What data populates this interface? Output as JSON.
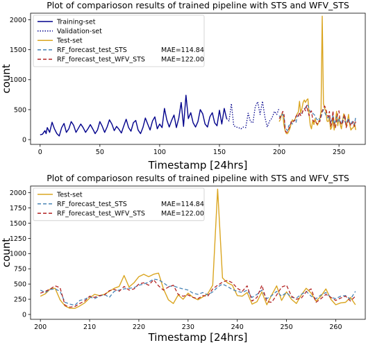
{
  "chart_data": [
    {
      "type": "line",
      "title": "Plot of comparioson results of trained pipeline with STS and WFV_STS",
      "xlabel": "Timestamp [24hrs]",
      "ylabel": "count",
      "xlim": [
        -8,
        272
      ],
      "ylim": [
        -80,
        2110
      ],
      "xticks": [
        0,
        50,
        100,
        150,
        200,
        250
      ],
      "yticks": [
        0,
        500,
        1000,
        1500,
        2000
      ],
      "legend_position": "top-left",
      "series": [
        {
          "name": "Training-set",
          "color": "#00008b",
          "style": "solid",
          "x": [
            0,
            2,
            4,
            5,
            6,
            8,
            10,
            12,
            14,
            16,
            18,
            20,
            22,
            24,
            26,
            28,
            30,
            32,
            34,
            36,
            38,
            40,
            42,
            44,
            46,
            48,
            50,
            52,
            54,
            56,
            58,
            60,
            62,
            64,
            66,
            68,
            70,
            72,
            74,
            76,
            78,
            80,
            82,
            84,
            86,
            88,
            90,
            92,
            94,
            96,
            98,
            100,
            102,
            104,
            106,
            108,
            110,
            112,
            114,
            116,
            118,
            120,
            122,
            124,
            126,
            128,
            130,
            132,
            134,
            136,
            138,
            140,
            142,
            144,
            146,
            148,
            150,
            152,
            154,
            156
          ],
          "y": [
            80,
            90,
            150,
            100,
            200,
            120,
            290,
            180,
            100,
            60,
            200,
            270,
            120,
            180,
            300,
            240,
            120,
            190,
            260,
            200,
            120,
            180,
            250,
            180,
            100,
            160,
            300,
            220,
            120,
            210,
            330,
            260,
            150,
            220,
            170,
            110,
            230,
            340,
            200,
            140,
            280,
            320,
            160,
            100,
            200,
            360,
            260,
            160,
            310,
            380,
            180,
            260,
            200,
            520,
            330,
            210,
            320,
            410,
            200,
            360,
            620,
            220,
            740,
            350,
            450,
            280,
            210,
            300,
            500,
            430,
            260,
            210,
            380,
            450,
            280,
            230,
            490,
            260,
            520,
            350
          ]
        },
        {
          "name": "Validation-set",
          "color": "#00008b",
          "style": "dotted",
          "x": [
            156,
            158,
            160,
            162,
            164,
            166,
            168,
            170,
            172,
            174,
            176,
            178,
            180,
            182,
            184,
            186,
            188,
            190,
            192,
            194,
            196,
            198,
            200
          ],
          "y": [
            350,
            310,
            600,
            230,
            210,
            200,
            180,
            210,
            200,
            440,
            300,
            280,
            550,
            630,
            420,
            640,
            380,
            210,
            310,
            360,
            470,
            420,
            530
          ]
        },
        {
          "name": "Test-set",
          "color": "#daa520",
          "style": "solid",
          "x": [
            200,
            201,
            202,
            203,
            204,
            205,
            206,
            207,
            208,
            209,
            210,
            211,
            212,
            213,
            214,
            215,
            216,
            217,
            218,
            219,
            220,
            221,
            222,
            223,
            224,
            225,
            226,
            227,
            228,
            229,
            230,
            231,
            232,
            233,
            234,
            235,
            236,
            237,
            238,
            239,
            240,
            241,
            242,
            243,
            244,
            245,
            246,
            247,
            248,
            249,
            250,
            251,
            252,
            253,
            254,
            255,
            256,
            257,
            258,
            259,
            260,
            261,
            262,
            263,
            264
          ],
          "y": [
            300,
            340,
            420,
            430,
            240,
            140,
            100,
            100,
            140,
            190,
            270,
            330,
            310,
            330,
            380,
            430,
            460,
            640,
            450,
            520,
            620,
            660,
            620,
            660,
            680,
            420,
            240,
            180,
            320,
            250,
            350,
            280,
            240,
            290,
            340,
            480,
            2060,
            600,
            520,
            480,
            310,
            300,
            360,
            170,
            210,
            370,
            160,
            320,
            470,
            230,
            370,
            250,
            180,
            320,
            430,
            350,
            220,
            300,
            420,
            250,
            160,
            190,
            200,
            280,
            160
          ]
        },
        {
          "name": "RF_forecast_test_STS",
          "color": "#4682b4",
          "style": "dashed",
          "mae_label": "MAE=114.84",
          "x": [
            200,
            201,
            202,
            203,
            204,
            205,
            206,
            207,
            208,
            209,
            210,
            211,
            212,
            213,
            214,
            215,
            216,
            217,
            218,
            219,
            220,
            221,
            222,
            223,
            224,
            225,
            226,
            227,
            228,
            229,
            230,
            231,
            232,
            233,
            234,
            235,
            236,
            237,
            238,
            239,
            240,
            241,
            242,
            243,
            244,
            245,
            246,
            247,
            248,
            249,
            250,
            251,
            252,
            253,
            254,
            255,
            256,
            257,
            258,
            259,
            260,
            261,
            262,
            263,
            264
          ],
          "y": [
            400,
            360,
            410,
            420,
            380,
            200,
            170,
            150,
            230,
            250,
            290,
            260,
            300,
            330,
            280,
            380,
            400,
            420,
            430,
            440,
            480,
            500,
            530,
            580,
            570,
            520,
            460,
            470,
            440,
            420,
            400,
            350,
            330,
            360,
            320,
            370,
            450,
            500,
            460,
            410,
            380,
            360,
            400,
            280,
            330,
            400,
            260,
            310,
            380,
            300,
            360,
            280,
            270,
            330,
            380,
            300,
            260,
            320,
            360,
            280,
            260,
            300,
            310,
            250,
            380
          ]
        },
        {
          "name": "RF_forecast_test_WFV_STS",
          "color": "#b22222",
          "style": "dashed",
          "mae_label": "MAE=122.00",
          "x": [
            200,
            201,
            202,
            203,
            204,
            205,
            206,
            207,
            208,
            209,
            210,
            211,
            212,
            213,
            214,
            215,
            216,
            217,
            218,
            219,
            220,
            221,
            222,
            223,
            224,
            225,
            226,
            227,
            228,
            229,
            230,
            231,
            232,
            233,
            234,
            235,
            236,
            237,
            238,
            239,
            240,
            241,
            242,
            243,
            244,
            245,
            246,
            247,
            248,
            249,
            250,
            251,
            252,
            253,
            254,
            255,
            256,
            257,
            258,
            259,
            260,
            261,
            262,
            263,
            264
          ],
          "y": [
            350,
            380,
            420,
            470,
            440,
            150,
            120,
            130,
            180,
            220,
            300,
            280,
            310,
            320,
            390,
            410,
            380,
            460,
            400,
            420,
            500,
            520,
            480,
            570,
            470,
            400,
            450,
            480,
            330,
            300,
            320,
            280,
            260,
            310,
            300,
            420,
            480,
            530,
            560,
            520,
            430,
            380,
            470,
            220,
            280,
            480,
            210,
            200,
            320,
            450,
            480,
            300,
            250,
            270,
            370,
            420,
            200,
            260,
            330,
            280,
            230,
            270,
            300,
            220,
            300
          ]
        }
      ]
    },
    {
      "type": "line",
      "title": "Plot of comparioson results of trained pipeline with STS and WFV_STS",
      "xlabel": "Timestamp [24hrs]",
      "ylabel": "count",
      "xlim": [
        198,
        266
      ],
      "ylim": [
        -80,
        2110
      ],
      "xticks": [
        200,
        210,
        220,
        230,
        240,
        250,
        260
      ],
      "yticks": [
        0,
        250,
        500,
        750,
        1000,
        1250,
        1500,
        1750,
        2000
      ],
      "legend_position": "top-left",
      "series_ref": [
        "Test-set",
        "RF_forecast_test_STS",
        "RF_forecast_test_WFV_STS"
      ]
    }
  ]
}
